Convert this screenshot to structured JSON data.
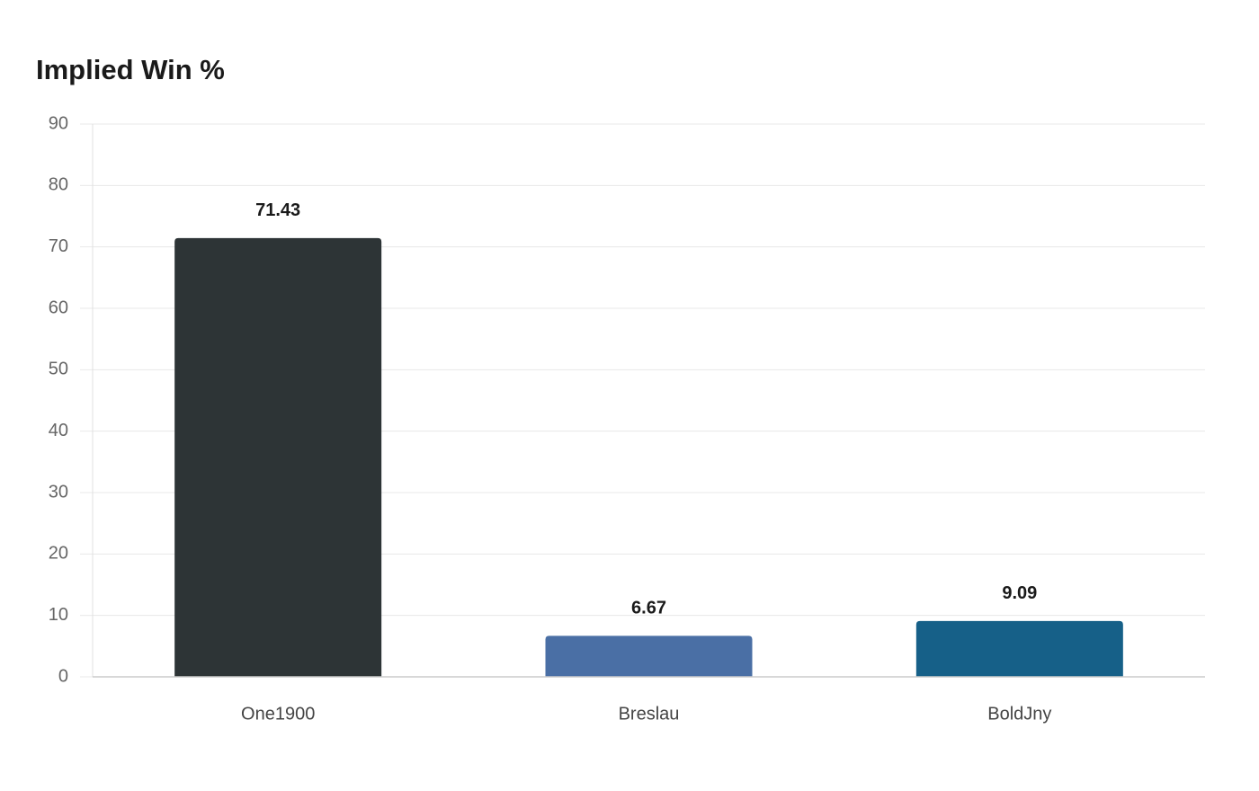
{
  "chart_data": {
    "type": "bar",
    "title": "Implied Win %",
    "categories": [
      "One1900",
      "Breslau",
      "BoldJny"
    ],
    "values": [
      71.43,
      6.67,
      9.09
    ],
    "colors": [
      "#2d3436",
      "#4a6fa5",
      "#166088"
    ],
    "ylim": [
      0,
      90
    ],
    "yticks": [
      0,
      10,
      20,
      30,
      40,
      50,
      60,
      70,
      80,
      90
    ],
    "grid": true
  }
}
